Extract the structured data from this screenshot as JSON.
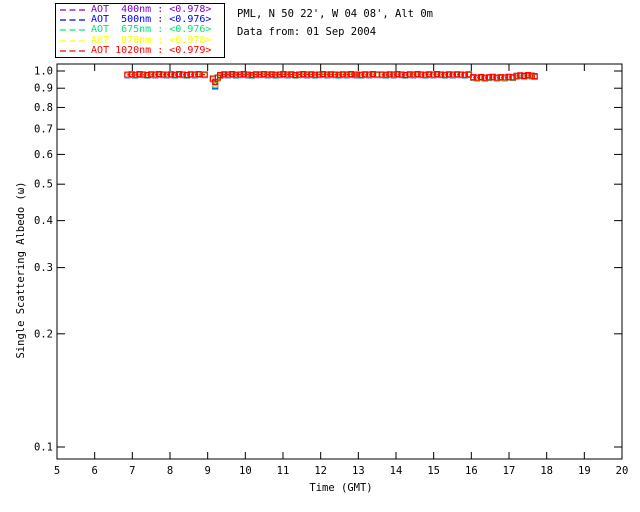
{
  "header": {
    "title_line1": "PML, N 50 22', W 04 08', Alt 0m",
    "title_line2": "Data from: 01 Sep 2004"
  },
  "legend": {
    "items": [
      {
        "text": "AOT  400nm : <0.978>",
        "wavelength": "400nm",
        "mean": "0.978",
        "color": "#7A00CC"
      },
      {
        "text": "AOT  500nm : <0.976>",
        "wavelength": "500nm",
        "mean": "0.976",
        "color": "#0000FF"
      },
      {
        "text": "AOT  675nm : <0.976>",
        "wavelength": "675nm",
        "mean": "0.976",
        "color": "#00E67A"
      },
      {
        "text": "AOT  870nm : <0.978>",
        "wavelength": "870nm",
        "mean": "0.978",
        "color": "#FFFF00"
      },
      {
        "text": "AOT 1020nm : <0.979>",
        "wavelength": "1020nm",
        "mean": "0.979",
        "color": "#FF0000"
      }
    ]
  },
  "chart_data": {
    "type": "line",
    "title": "PML, N 50 22', W 04 08', Alt 0m",
    "subtitle": "Data from: 01 Sep 2004",
    "xlabel": "Time (GMT)",
    "ylabel": "Single Scattering Albedo (ω)",
    "xlim": [
      5,
      20
    ],
    "ylim": [
      0.1,
      1.0
    ],
    "y_scale": "log",
    "grid": false,
    "legend_position": "top-left-outside",
    "marker": "open-square",
    "line_style": "dashed",
    "axis_color": "#000000",
    "x_ticks": [
      5,
      6,
      7,
      8,
      9,
      10,
      11,
      12,
      13,
      14,
      15,
      16,
      17,
      18,
      19,
      20
    ],
    "y_ticks": [
      1.0,
      0.9,
      0.8,
      0.7,
      0.6,
      0.5,
      0.4,
      0.3,
      0.2,
      0.1
    ],
    "y_tick_labels": [
      "1.0",
      "0.9",
      "0.8",
      "0.7",
      "0.6",
      "0.5",
      "0.4",
      "0.3",
      "0.2",
      "0.1"
    ],
    "series": [
      {
        "name": "AOT 400nm",
        "color": "#7A00CC",
        "mean_ssa": 0.978,
        "offset": 0.002
      },
      {
        "name": "AOT 500nm",
        "color": "#0000FF",
        "mean_ssa": 0.976,
        "offset": -0.001
      },
      {
        "name": "AOT 675nm",
        "color": "#00E67A",
        "mean_ssa": 0.976,
        "offset": 0.0
      },
      {
        "name": "AOT 870nm",
        "color": "#FFFF00",
        "mean_ssa": 0.978,
        "offset": 0.002
      },
      {
        "name": "AOT 1020nm",
        "color": "#FF0000",
        "mean_ssa": 0.979,
        "offset": 0.003
      }
    ],
    "dip_spread_threshold": 0.94,
    "dip_spread_factor": 6,
    "base_segments": [
      [
        [
          6.87,
          0.975
        ],
        [
          6.98,
          0.977
        ],
        [
          7.08,
          0.974
        ],
        [
          7.19,
          0.978
        ],
        [
          7.29,
          0.976
        ],
        [
          7.4,
          0.973
        ],
        [
          7.5,
          0.977
        ],
        [
          7.61,
          0.975
        ],
        [
          7.71,
          0.978
        ],
        [
          7.82,
          0.976
        ],
        [
          7.92,
          0.975
        ],
        [
          8.03,
          0.977
        ],
        [
          8.13,
          0.974
        ],
        [
          8.24,
          0.978
        ],
        [
          8.34,
          0.976
        ],
        [
          8.45,
          0.973
        ],
        [
          8.55,
          0.977
        ],
        [
          8.66,
          0.975
        ],
        [
          8.76,
          0.978
        ],
        [
          8.92,
          0.976
        ]
      ],
      [
        [
          9.14,
          0.952
        ],
        [
          9.2,
          0.916
        ],
        [
          9.27,
          0.958
        ],
        [
          9.33,
          0.972
        ],
        [
          9.44,
          0.977
        ],
        [
          9.54,
          0.975
        ],
        [
          9.65,
          0.978
        ],
        [
          9.75,
          0.974
        ],
        [
          9.86,
          0.976
        ],
        [
          9.96,
          0.978
        ],
        [
          10.07,
          0.975
        ],
        [
          10.17,
          0.973
        ],
        [
          10.28,
          0.977
        ],
        [
          10.38,
          0.976
        ],
        [
          10.49,
          0.978
        ],
        [
          10.59,
          0.975
        ],
        [
          10.7,
          0.977
        ],
        [
          10.8,
          0.974
        ],
        [
          10.91,
          0.976
        ],
        [
          11.01,
          0.978
        ],
        [
          11.12,
          0.975
        ],
        [
          11.22,
          0.977
        ],
        [
          11.33,
          0.973
        ],
        [
          11.43,
          0.976
        ],
        [
          11.54,
          0.978
        ],
        [
          11.64,
          0.975
        ],
        [
          11.75,
          0.977
        ],
        [
          11.85,
          0.974
        ],
        [
          11.96,
          0.976
        ],
        [
          12.06,
          0.978
        ],
        [
          12.17,
          0.975
        ],
        [
          12.27,
          0.977
        ],
        [
          12.38,
          0.976
        ],
        [
          12.48,
          0.974
        ],
        [
          12.59,
          0.977
        ],
        [
          12.69,
          0.975
        ],
        [
          12.8,
          0.978
        ],
        [
          12.9,
          0.976
        ],
        [
          12.97,
          0.975
        ]
      ],
      [
        [
          13.08,
          0.974
        ],
        [
          13.18,
          0.977
        ],
        [
          13.29,
          0.975
        ],
        [
          13.39,
          0.978
        ],
        [
          13.5,
          0.976
        ]
      ],
      [
        [
          13.62,
          0.976
        ],
        [
          13.73,
          0.974
        ],
        [
          13.83,
          0.977
        ],
        [
          13.94,
          0.975
        ],
        [
          14.04,
          0.978
        ],
        [
          14.15,
          0.976
        ],
        [
          14.25,
          0.973
        ],
        [
          14.36,
          0.977
        ],
        [
          14.46,
          0.975
        ],
        [
          14.57,
          0.978
        ],
        [
          14.67,
          0.976
        ],
        [
          14.78,
          0.974
        ],
        [
          14.88,
          0.977
        ],
        [
          14.99,
          0.975
        ],
        [
          15.09,
          0.978
        ],
        [
          15.2,
          0.976
        ],
        [
          15.3,
          0.974
        ],
        [
          15.41,
          0.977
        ],
        [
          15.51,
          0.975
        ],
        [
          15.62,
          0.977
        ],
        [
          15.72,
          0.976
        ],
        [
          15.83,
          0.974
        ],
        [
          15.93,
          0.977
        ]
      ],
      [
        [
          16.05,
          0.96
        ],
        [
          16.15,
          0.957
        ],
        [
          16.26,
          0.961
        ],
        [
          16.36,
          0.956
        ],
        [
          16.47,
          0.959
        ],
        [
          16.57,
          0.962
        ],
        [
          16.68,
          0.957
        ],
        [
          16.78,
          0.96
        ],
        [
          16.89,
          0.958
        ],
        [
          16.99,
          0.962
        ],
        [
          17.1,
          0.959
        ]
      ],
      [
        [
          17.2,
          0.968
        ],
        [
          17.3,
          0.971
        ],
        [
          17.4,
          0.967
        ],
        [
          17.5,
          0.972
        ],
        [
          17.6,
          0.969
        ],
        [
          17.68,
          0.966
        ]
      ]
    ]
  }
}
